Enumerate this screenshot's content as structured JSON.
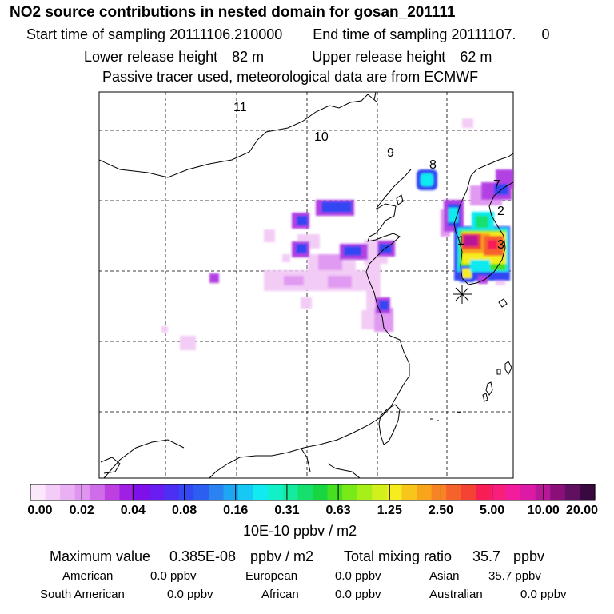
{
  "header": {
    "title": "NO2 source contributions in nested domain for gosan_201111",
    "start_label": "Start time of sampling",
    "start_value": "20111106.210000",
    "end_label": "End time of sampling",
    "end_value": "20111107.",
    "end_suffix": "0",
    "lower_label": "Lower release height",
    "lower_value": "82 m",
    "upper_label": "Upper release height",
    "upper_value": "62 m",
    "tracer_note": "Passive tracer used, meteorological data are from ECMWF"
  },
  "chart_data": {
    "type": "heatmap",
    "title": "NO2 source contributions in nested domain for gosan_201111",
    "units": "10E-10 ppbv / m2",
    "colorbar": {
      "tick_labels": [
        "0.00",
        "0.02",
        "0.04",
        "0.08",
        "0.16",
        "0.31",
        "0.63",
        "1.25",
        "2.50",
        "5.00",
        "10.00",
        "20.00"
      ],
      "colors": [
        "#fbe9fb",
        "#f4ccf7",
        "#eab0f4",
        "#df95f0",
        "#cf6ce9",
        "#bd3fe2",
        "#9f1fe4",
        "#7f10ea",
        "#6a1df0",
        "#4b2ff3",
        "#3347f2",
        "#2c5ff1",
        "#2a83f0",
        "#1fa6f2",
        "#17c7f4",
        "#10eaf0",
        "#12f0c8",
        "#14eb9c",
        "#15e06e",
        "#18d63f",
        "#46e020",
        "#78ea18",
        "#a6ef18",
        "#d2f01c",
        "#f6ed1e",
        "#f8c51a",
        "#f8a51c",
        "#f78424",
        "#f6622b",
        "#f44235",
        "#f81e55",
        "#f81e7c",
        "#f21c9c",
        "#dd1aa6",
        "#b81896",
        "#8b0f79",
        "#601060",
        "#3a0840"
      ]
    },
    "map_labels": [
      "11",
      "10",
      "9",
      "8",
      "7",
      "2",
      "1",
      "3"
    ],
    "max_value": "0.385E-08",
    "max_units": "ppbv / m2",
    "total_mixing_ratio": "35.7",
    "total_units": "ppbv"
  },
  "summary": {
    "max_label": "Maximum value",
    "total_label": "Total mixing ratio",
    "regions": [
      {
        "name": "American",
        "value": "0.0 ppbv"
      },
      {
        "name": "European",
        "value": "0.0 ppbv"
      },
      {
        "name": "Asian",
        "value": "35.7 ppbv"
      },
      {
        "name": "South American",
        "value": "0.0 ppbv"
      },
      {
        "name": "African",
        "value": "0.0 ppbv"
      },
      {
        "name": "Australian",
        "value": "0.0 ppbv"
      }
    ]
  }
}
